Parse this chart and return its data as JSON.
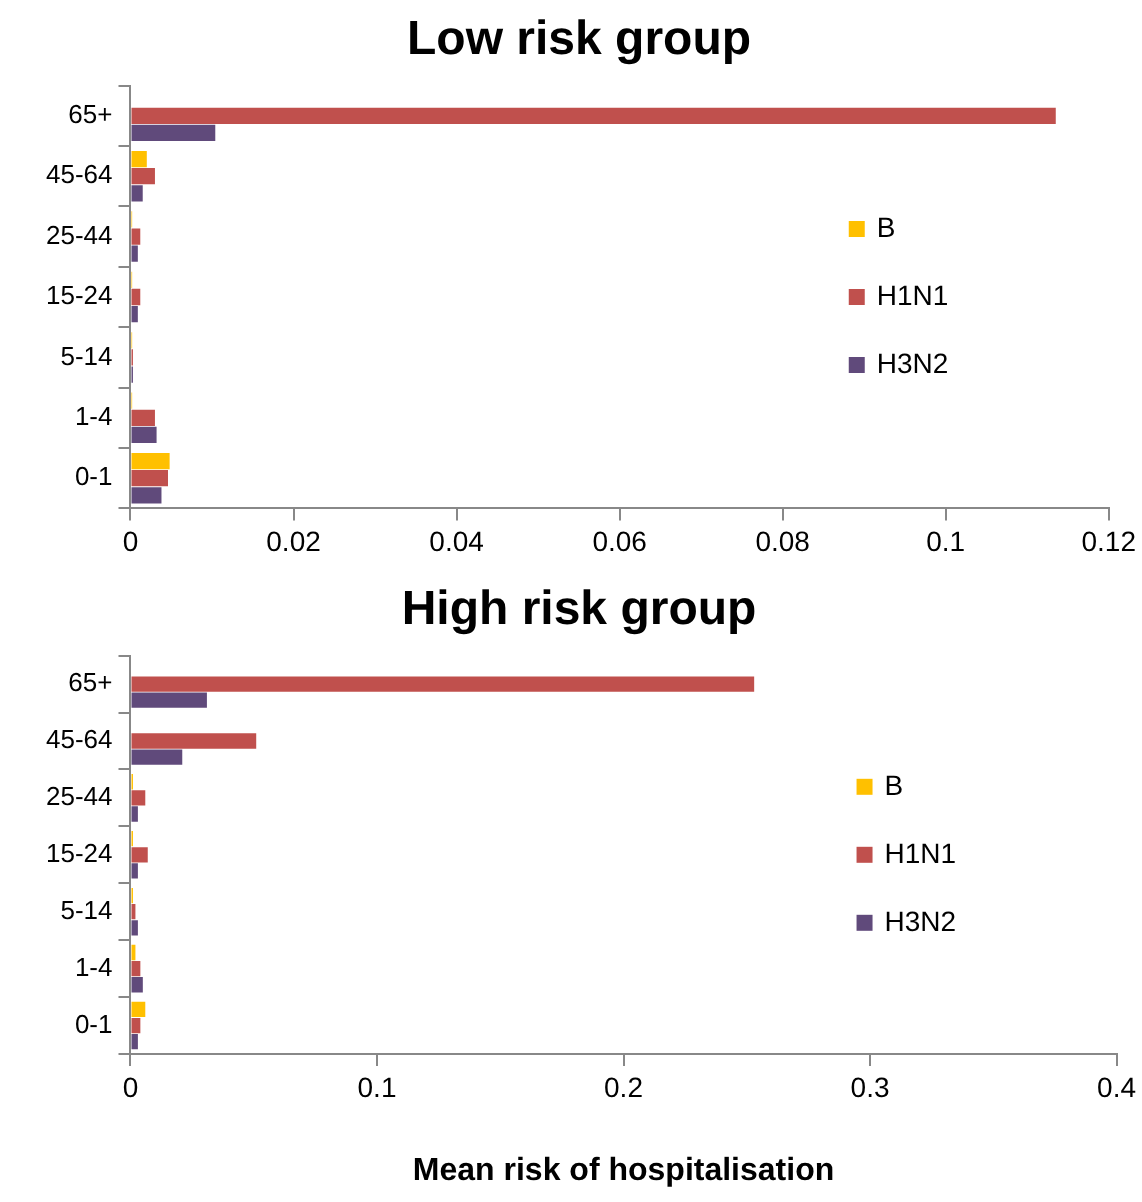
{
  "chart_data": [
    {
      "type": "bar",
      "orientation": "horizontal",
      "title": "Low risk group",
      "categories": [
        "65+",
        "45-64",
        "25-44",
        "15-24",
        "5-14",
        "1-4",
        "0-1"
      ],
      "series": [
        {
          "name": "B",
          "color": "#ffc000",
          "values": [
            0,
            0.002,
            0.0002,
            0.0002,
            0.0002,
            0.0002,
            0.0048
          ]
        },
        {
          "name": "H1N1",
          "color": "#c0504d",
          "values": [
            0.1135,
            0.003,
            0.0012,
            0.0012,
            0.0003,
            0.003,
            0.0046
          ]
        },
        {
          "name": "H3N2",
          "color": "#604a7b",
          "values": [
            0.0104,
            0.0015,
            0.0009,
            0.0009,
            0.0003,
            0.0032,
            0.0038
          ]
        }
      ],
      "xlim": [
        0,
        0.12
      ],
      "xticks": [
        0,
        0.02,
        0.04,
        0.06,
        0.08,
        0.1,
        0.12
      ],
      "grid": false,
      "legend": "right"
    },
    {
      "type": "bar",
      "orientation": "horizontal",
      "title": "High risk group",
      "xlabel": "Mean risk of hospitalisation",
      "categories": [
        "65+",
        "45-64",
        "25-44",
        "15-24",
        "5-14",
        "1-4",
        "0-1"
      ],
      "series": [
        {
          "name": "B",
          "color": "#ffc000",
          "values": [
            0,
            0,
            0.001,
            0.001,
            0.001,
            0.002,
            0.006
          ]
        },
        {
          "name": "H1N1",
          "color": "#c0504d",
          "values": [
            0.253,
            0.051,
            0.006,
            0.007,
            0.002,
            0.004,
            0.004
          ]
        },
        {
          "name": "H3N2",
          "color": "#604a7b",
          "values": [
            0.031,
            0.021,
            0.003,
            0.003,
            0.003,
            0.005,
            0.003
          ]
        }
      ],
      "xlim": [
        0,
        0.4
      ],
      "xticks": [
        0,
        0.1,
        0.2,
        0.3,
        0.4
      ],
      "grid": false,
      "legend": "right"
    }
  ]
}
